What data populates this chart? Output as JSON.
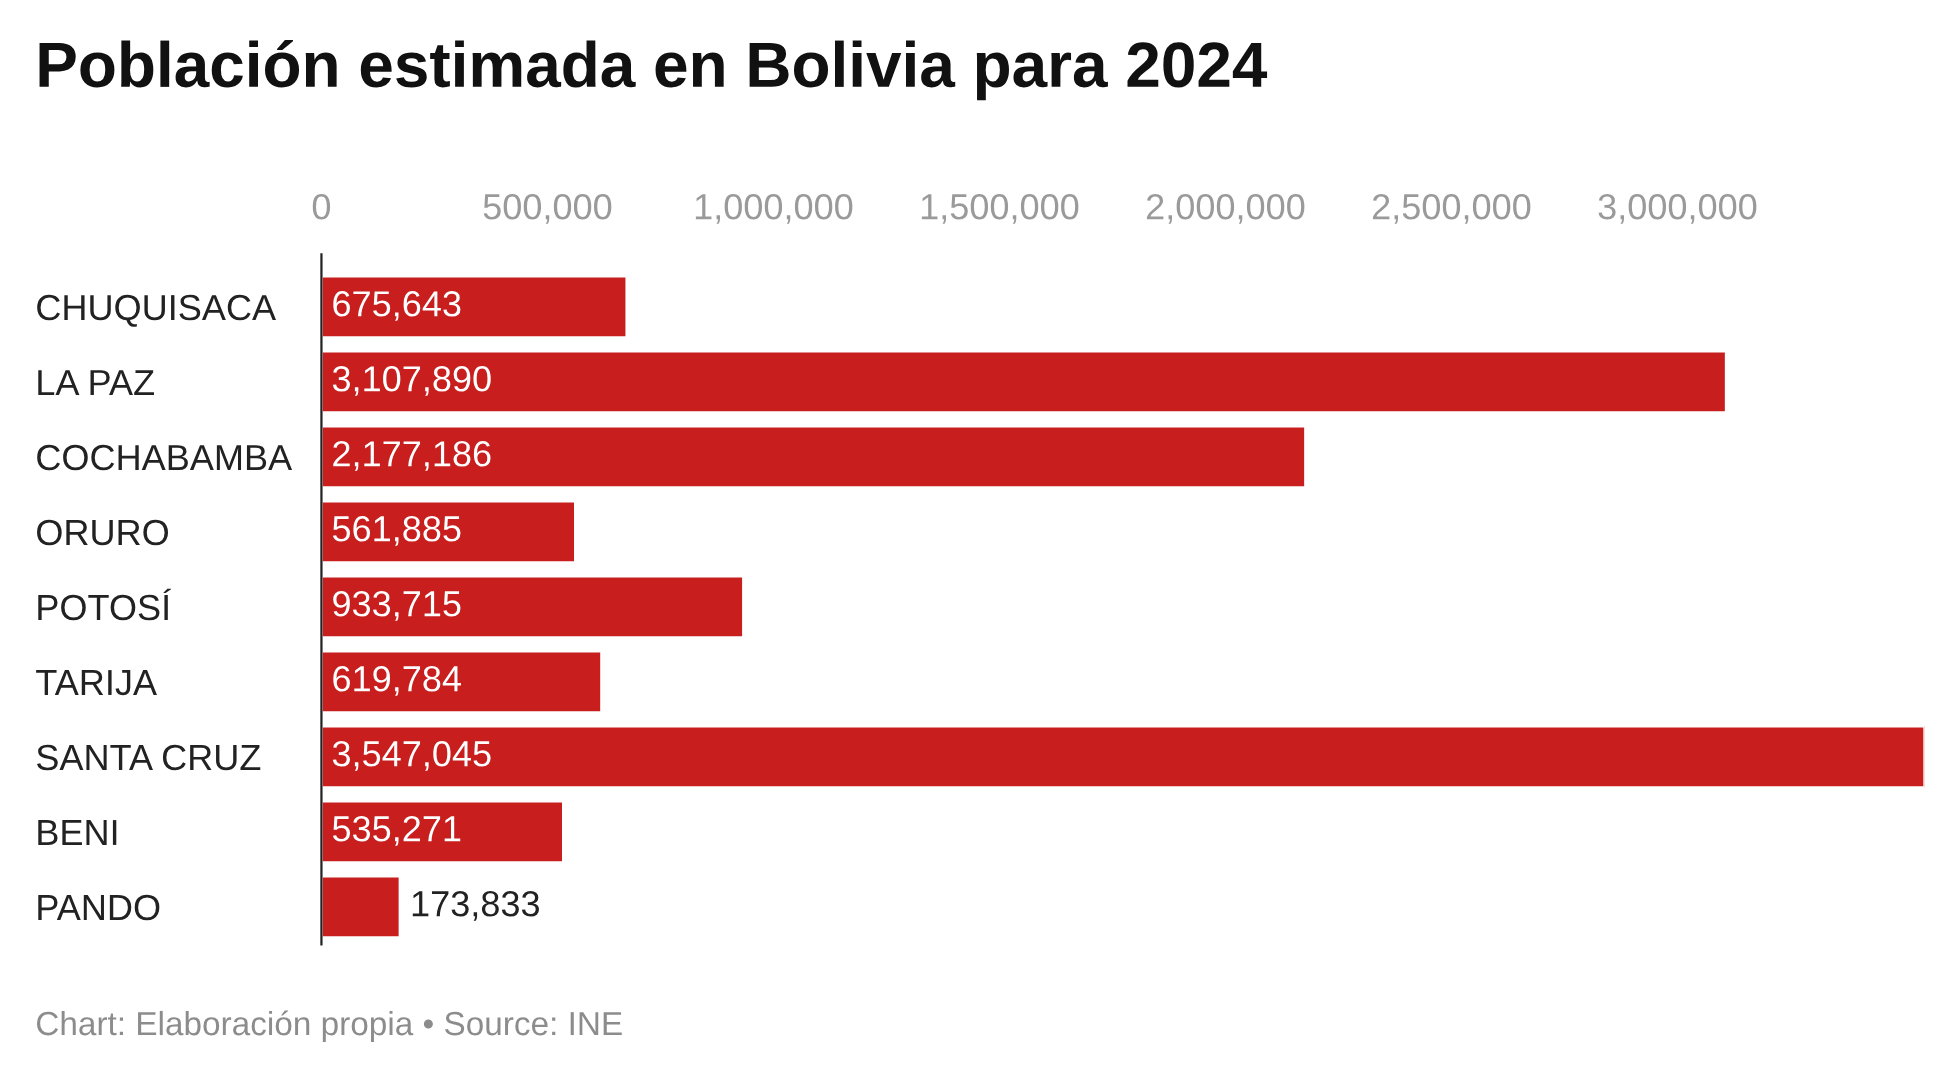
{
  "chart_data": {
    "type": "bar",
    "orientation": "horizontal",
    "title": "Población estimada en Bolivia para 2024",
    "categories": [
      "CHUQUISACA",
      "LA PAZ",
      "COCHABAMBA",
      "ORURO",
      "POTOSÍ",
      "TARIJA",
      "SANTA CRUZ",
      "BENI",
      "PANDO"
    ],
    "values": [
      675643,
      3107890,
      2177186,
      561885,
      933715,
      619784,
      3547045,
      535271,
      173833
    ],
    "value_labels": [
      "675,643",
      "3,107,890",
      "2,177,186",
      "561,885",
      "933,715",
      "619,784",
      "3,547,045",
      "535,271",
      "173,833"
    ],
    "color": "#c81e1e",
    "xlim": [
      0,
      3547045
    ],
    "xticks": [
      0,
      {
        "value": 500000,
        "label": "500,000"
      },
      {
        "value": 1000000,
        "label": "1,000,000"
      },
      {
        "value": 1500000,
        "label": "1,500,000"
      },
      {
        "value": 2000000,
        "label": "2,000,000"
      },
      {
        "value": 2500000,
        "label": "2,500,000"
      },
      {
        "value": 3000000,
        "label": "3,000,000"
      }
    ],
    "grid": false,
    "legend": false,
    "annotations": [
      "Chart: Elaboración propia • Source: INE"
    ]
  }
}
